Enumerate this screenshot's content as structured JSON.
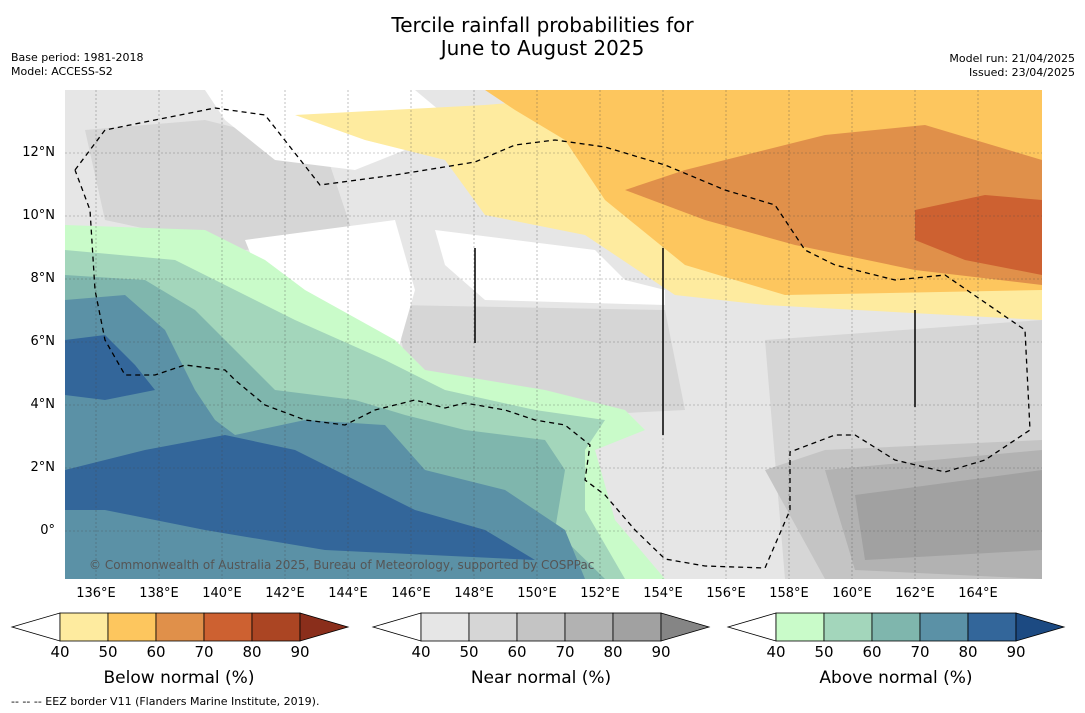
{
  "title_line1": "Tercile rainfall probabilities for",
  "title_line2": "June to August 2025",
  "base_period": "Base period: 1981-2018",
  "model": "Model: ACCESS-S2",
  "model_run": "Model run: 21/04/2025",
  "issued": "Issued: 23/04/2025",
  "copyright": "© Commonwealth of Australia 2025, Bureau of Meteorology, supported by COSPPac",
  "footer": "--  --  -- EEZ border V11 (Flanders Marine Institute, 2019).",
  "lon_labels": [
    "136°E",
    "138°E",
    "140°E",
    "142°E",
    "144°E",
    "146°E",
    "148°E",
    "150°E",
    "152°E",
    "154°E",
    "156°E",
    "158°E",
    "160°E",
    "162°E",
    "164°E"
  ],
  "lat_labels": [
    "12°N",
    "10°N",
    "8°N",
    "6°N",
    "4°N",
    "2°N",
    "0°"
  ],
  "colorbars": [
    {
      "label": "Below normal (%)",
      "ticks": [
        "40",
        "50",
        "60",
        "70",
        "80",
        "90"
      ],
      "colors": [
        "#ffffff",
        "#feeb9f",
        "#fdc65e",
        "#e0904a",
        "#cd6131",
        "#ab4523",
        "#8a2e1b"
      ]
    },
    {
      "label": "Near normal (%)",
      "ticks": [
        "40",
        "50",
        "60",
        "70",
        "80",
        "90"
      ],
      "colors": [
        "#ffffff",
        "#e6e6e6",
        "#d6d6d6",
        "#c4c4c4",
        "#b2b2b2",
        "#a1a1a1",
        "#858585"
      ]
    },
    {
      "label": "Above normal (%)",
      "ticks": [
        "40",
        "50",
        "60",
        "70",
        "80",
        "90"
      ],
      "colors": [
        "#ffffff",
        "#c9fbc9",
        "#a3d6bb",
        "#7fb6ad",
        "#5b91a6",
        "#33669a",
        "#1c4a82"
      ]
    }
  ],
  "colors": {
    "map_bg": "#e6e6e6",
    "eez_border": "#000000"
  }
}
